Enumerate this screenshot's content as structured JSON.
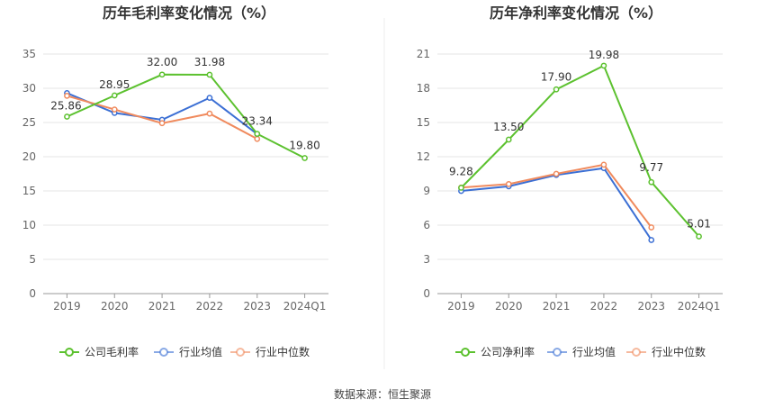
{
  "source_note": "数据来源：恒生聚源",
  "chart_data": [
    {
      "type": "line",
      "title": "历年毛利率变化情况（%）",
      "categories": [
        "2019",
        "2020",
        "2021",
        "2022",
        "2023",
        "2024Q1"
      ],
      "ylim": [
        0,
        35
      ],
      "yticks": [
        0,
        5,
        10,
        15,
        20,
        25,
        30,
        35
      ],
      "grid": true,
      "legend_position": "bottom",
      "series": [
        {
          "name": "公司毛利率",
          "color": "#5cc12f",
          "values": [
            25.86,
            28.95,
            32.0,
            31.98,
            23.34,
            19.8
          ],
          "labels": [
            "25.86",
            "28.95",
            "32.00",
            "31.98",
            "23.34",
            "19.80"
          ]
        },
        {
          "name": "行业均值",
          "color": "#3b6fd4",
          "values": [
            29.3,
            26.4,
            25.4,
            28.6,
            23.3,
            null
          ]
        },
        {
          "name": "行业中位数",
          "color": "#f08a5d",
          "values": [
            28.9,
            26.9,
            24.9,
            26.3,
            22.6,
            null
          ]
        }
      ]
    },
    {
      "type": "line",
      "title": "历年净利率变化情况（%）",
      "categories": [
        "2019",
        "2020",
        "2021",
        "2022",
        "2023",
        "2024Q1"
      ],
      "ylim": [
        0,
        21
      ],
      "yticks": [
        0,
        3,
        6,
        9,
        12,
        15,
        18,
        21
      ],
      "grid": true,
      "legend_position": "bottom",
      "series": [
        {
          "name": "公司净利率",
          "color": "#5cc12f",
          "values": [
            9.28,
            13.5,
            17.9,
            19.98,
            9.77,
            5.01
          ],
          "labels": [
            "9.28",
            "13.50",
            "17.90",
            "19.98",
            "9.77",
            "5.01"
          ]
        },
        {
          "name": "行业均值",
          "color": "#3b6fd4",
          "values": [
            9.0,
            9.4,
            10.4,
            11.0,
            4.7,
            null
          ]
        },
        {
          "name": "行业中位数",
          "color": "#f08a5d",
          "values": [
            9.3,
            9.6,
            10.5,
            11.3,
            5.8,
            null
          ]
        }
      ]
    }
  ]
}
